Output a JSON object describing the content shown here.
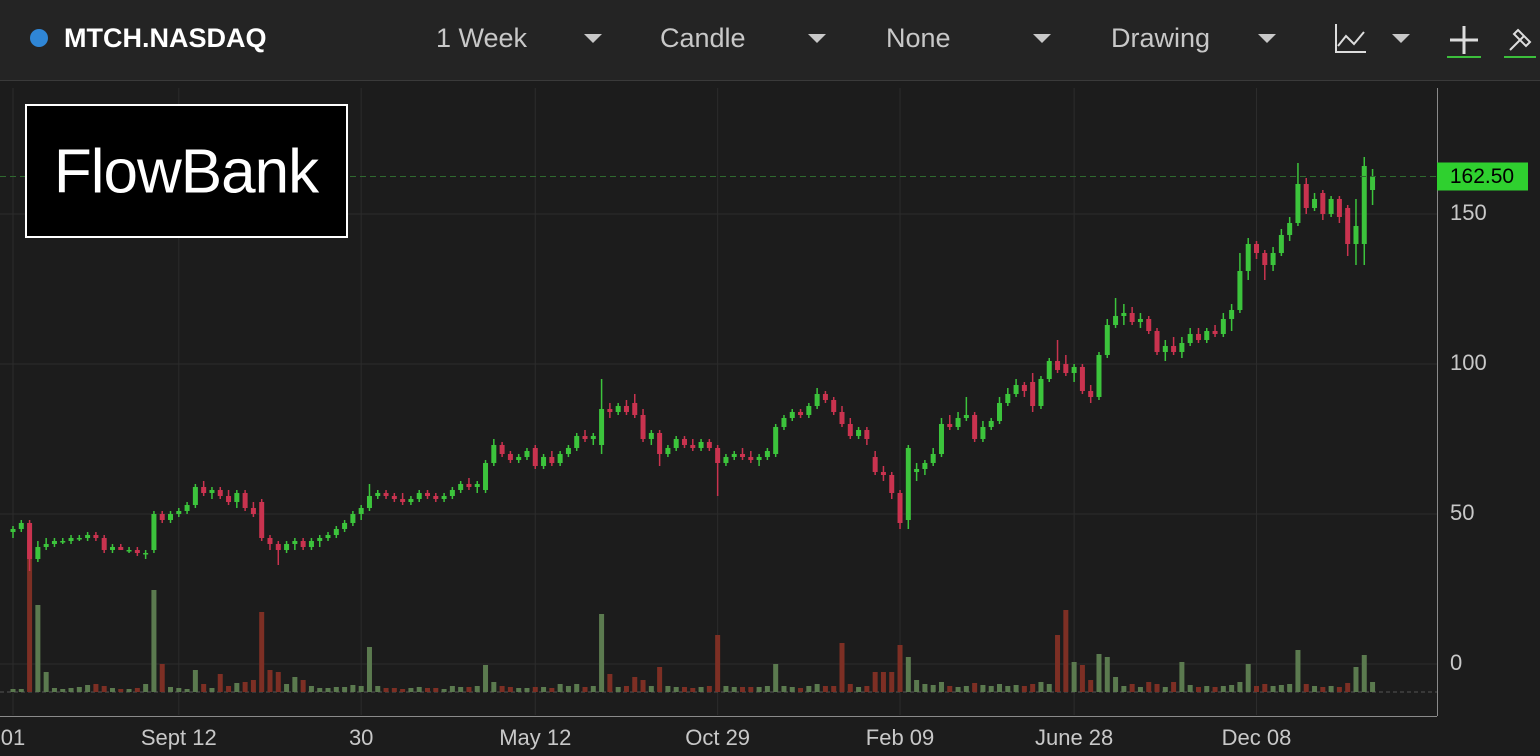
{
  "toolbar": {
    "symbol": "MTCH.NASDAQ",
    "interval": "1 Week",
    "chart_style": "Candle",
    "study": "None",
    "drawing": "Drawing"
  },
  "logo": "FlowBank",
  "chart_data": {
    "type": "candlestick",
    "grid": true,
    "up_color": "#3cc43c",
    "down_color": "#c9334f",
    "volume_up_color": "#5b7a4f",
    "volume_down_color": "#7d2f24",
    "ylim": [
      -17,
      193
    ],
    "yticks": [
      0,
      50,
      100,
      150
    ],
    "last_price": {
      "value": 162.5,
      "label": "162.50"
    },
    "categories": [
      "01",
      null,
      null,
      null,
      null,
      null,
      null,
      null,
      null,
      null,
      null,
      null,
      null,
      null,
      null,
      null,
      null,
      null,
      null,
      null,
      "Sept 12",
      null,
      null,
      null,
      null,
      null,
      null,
      null,
      null,
      null,
      null,
      null,
      null,
      null,
      null,
      null,
      null,
      null,
      null,
      null,
      null,
      null,
      "30",
      null,
      null,
      null,
      null,
      null,
      null,
      null,
      null,
      null,
      null,
      null,
      null,
      null,
      null,
      null,
      null,
      null,
      null,
      null,
      null,
      "May 12",
      null,
      null,
      null,
      null,
      null,
      null,
      null,
      null,
      null,
      null,
      null,
      null,
      null,
      null,
      null,
      null,
      null,
      null,
      null,
      null,
      null,
      "Oct 29",
      null,
      null,
      null,
      null,
      null,
      null,
      null,
      null,
      null,
      null,
      null,
      null,
      null,
      null,
      null,
      null,
      null,
      null,
      null,
      null,
      null,
      "Feb 09",
      null,
      null,
      null,
      null,
      null,
      null,
      null,
      null,
      null,
      null,
      null,
      null,
      null,
      null,
      null,
      null,
      null,
      null,
      null,
      null,
      "June 28",
      null,
      null,
      null,
      null,
      null,
      null,
      null,
      null,
      null,
      null,
      null,
      null,
      null,
      null,
      null,
      null,
      null,
      null,
      null,
      null,
      null,
      "Dec 08",
      null,
      null,
      null,
      null,
      null,
      null,
      null,
      null,
      null,
      null,
      null,
      null,
      null,
      null
    ],
    "candles": [
      [
        44,
        46,
        42,
        45,
        3
      ],
      [
        45,
        48,
        44,
        47,
        3
      ],
      [
        47,
        48,
        31,
        35,
        152
      ],
      [
        35,
        41,
        34,
        39,
        87
      ],
      [
        39,
        42,
        38,
        40,
        20
      ],
      [
        40,
        42,
        39,
        41,
        4
      ],
      [
        41,
        42,
        40,
        41,
        3
      ],
      [
        41,
        43,
        40,
        42,
        4
      ],
      [
        42,
        43,
        41,
        42,
        5
      ],
      [
        42,
        44,
        41,
        43,
        7
      ],
      [
        43,
        44,
        41,
        42,
        8
      ],
      [
        42,
        43,
        37,
        38,
        6
      ],
      [
        38,
        40,
        37,
        39,
        4
      ],
      [
        39,
        40,
        38,
        38,
        3
      ],
      [
        38,
        39,
        37,
        38,
        3
      ],
      [
        38,
        39,
        36,
        37,
        4
      ],
      [
        37,
        38,
        35,
        37,
        8
      ],
      [
        38,
        51,
        37,
        50,
        102
      ],
      [
        50,
        51,
        47,
        48,
        28
      ],
      [
        48,
        51,
        47,
        50,
        5
      ],
      [
        50,
        52,
        49,
        51,
        4
      ],
      [
        51,
        54,
        50,
        53,
        3
      ],
      [
        53,
        60,
        52,
        59,
        22
      ],
      [
        59,
        61,
        56,
        57,
        8
      ],
      [
        57,
        59,
        55,
        58,
        4
      ],
      [
        58,
        59,
        55,
        56,
        18
      ],
      [
        56,
        58,
        53,
        54,
        6
      ],
      [
        54,
        58,
        52,
        57,
        9
      ],
      [
        57,
        58,
        51,
        52,
        10
      ],
      [
        52,
        54,
        49,
        50,
        12
      ],
      [
        54,
        55,
        41,
        42,
        80
      ],
      [
        42,
        43,
        38,
        40,
        22
      ],
      [
        40,
        41,
        33,
        38,
        20
      ],
      [
        38,
        41,
        37,
        40,
        8
      ],
      [
        40,
        42,
        38,
        41,
        15
      ],
      [
        41,
        42,
        38,
        39,
        12
      ],
      [
        39,
        42,
        38,
        41,
        6
      ],
      [
        41,
        43,
        39,
        42,
        4
      ],
      [
        42,
        44,
        41,
        43,
        4
      ],
      [
        43,
        46,
        42,
        45,
        5
      ],
      [
        45,
        48,
        44,
        47,
        5
      ],
      [
        47,
        51,
        46,
        50,
        7
      ],
      [
        50,
        53,
        48,
        52,
        6
      ],
      [
        52,
        60,
        51,
        56,
        45
      ],
      [
        56,
        58,
        55,
        57,
        6
      ],
      [
        57,
        58,
        55,
        56,
        4
      ],
      [
        56,
        57,
        54,
        55,
        4
      ],
      [
        55,
        57,
        53,
        54,
        3
      ],
      [
        54,
        56,
        53,
        55,
        4
      ],
      [
        55,
        58,
        54,
        57,
        5
      ],
      [
        57,
        58,
        55,
        56,
        4
      ],
      [
        56,
        57,
        54,
        55,
        4
      ],
      [
        55,
        57,
        54,
        56,
        3
      ],
      [
        56,
        59,
        55,
        58,
        6
      ],
      [
        58,
        61,
        57,
        60,
        5
      ],
      [
        60,
        62,
        58,
        59,
        5
      ],
      [
        59,
        61,
        57,
        60,
        6
      ],
      [
        58,
        68,
        57,
        67,
        27
      ],
      [
        67,
        75,
        66,
        73,
        10
      ],
      [
        73,
        74,
        69,
        70,
        6
      ],
      [
        70,
        71,
        67,
        68,
        5
      ],
      [
        68,
        70,
        67,
        69,
        4
      ],
      [
        69,
        72,
        68,
        71,
        4
      ],
      [
        72,
        73,
        65,
        66,
        5
      ],
      [
        66,
        70,
        65,
        69,
        5
      ],
      [
        69,
        71,
        66,
        67,
        4
      ],
      [
        67,
        71,
        66,
        70,
        8
      ],
      [
        70,
        73,
        69,
        72,
        6
      ],
      [
        72,
        77,
        71,
        76,
        8
      ],
      [
        76,
        78,
        74,
        75,
        5
      ],
      [
        75,
        77,
        73,
        76,
        6
      ],
      [
        73,
        95,
        70,
        85,
        78
      ],
      [
        85,
        87,
        82,
        84,
        18
      ],
      [
        84,
        87,
        83,
        86,
        5
      ],
      [
        86,
        88,
        83,
        84,
        6
      ],
      [
        87,
        90,
        82,
        83,
        15
      ],
      [
        83,
        85,
        74,
        75,
        12
      ],
      [
        75,
        78,
        73,
        77,
        6
      ],
      [
        77,
        78,
        66,
        70,
        25
      ],
      [
        70,
        73,
        69,
        72,
        6
      ],
      [
        72,
        76,
        71,
        75,
        5
      ],
      [
        75,
        76,
        72,
        73,
        5
      ],
      [
        73,
        75,
        71,
        72,
        4
      ],
      [
        72,
        75,
        71,
        74,
        5
      ],
      [
        74,
        75,
        71,
        72,
        6
      ],
      [
        72,
        73,
        56,
        67,
        57
      ],
      [
        67,
        70,
        66,
        69,
        6
      ],
      [
        69,
        71,
        68,
        70,
        5
      ],
      [
        70,
        72,
        68,
        69,
        5
      ],
      [
        69,
        71,
        67,
        68,
        5
      ],
      [
        68,
        70,
        66,
        69,
        5
      ],
      [
        69,
        72,
        68,
        71,
        6
      ],
      [
        70,
        80,
        69,
        79,
        28
      ],
      [
        79,
        83,
        78,
        82,
        6
      ],
      [
        82,
        85,
        81,
        84,
        5
      ],
      [
        84,
        85,
        82,
        83,
        4
      ],
      [
        83,
        87,
        82,
        86,
        6
      ],
      [
        86,
        92,
        85,
        90,
        8
      ],
      [
        90,
        91,
        87,
        88,
        6
      ],
      [
        88,
        89,
        83,
        84,
        6
      ],
      [
        84,
        86,
        79,
        80,
        49
      ],
      [
        80,
        82,
        75,
        76,
        8
      ],
      [
        76,
        79,
        75,
        78,
        5
      ],
      [
        78,
        79,
        73,
        75,
        6
      ],
      [
        69,
        71,
        63,
        64,
        20
      ],
      [
        64,
        66,
        61,
        63,
        20
      ],
      [
        63,
        64,
        55,
        57,
        20
      ],
      [
        57,
        58,
        45,
        47,
        47
      ],
      [
        48,
        73,
        45,
        72,
        35
      ],
      [
        64,
        67,
        61,
        65,
        12
      ],
      [
        65,
        68,
        63,
        67,
        8
      ],
      [
        67,
        72,
        66,
        70,
        7
      ],
      [
        70,
        82,
        69,
        80,
        10
      ],
      [
        80,
        83,
        78,
        79,
        6
      ],
      [
        79,
        84,
        78,
        82,
        5
      ],
      [
        82,
        89,
        81,
        83,
        6
      ],
      [
        83,
        84,
        74,
        75,
        9
      ],
      [
        75,
        81,
        74,
        79,
        7
      ],
      [
        79,
        82,
        78,
        81,
        6
      ],
      [
        81,
        89,
        80,
        87,
        8
      ],
      [
        87,
        92,
        86,
        90,
        6
      ],
      [
        90,
        95,
        89,
        93,
        7
      ],
      [
        93,
        94,
        89,
        91,
        6
      ],
      [
        94,
        97,
        84,
        86,
        8
      ],
      [
        86,
        96,
        85,
        95,
        10
      ],
      [
        95,
        102,
        94,
        101,
        8
      ],
      [
        101,
        108,
        97,
        98,
        57
      ],
      [
        100,
        103,
        96,
        97,
        82
      ],
      [
        97,
        100,
        94,
        99,
        30
      ],
      [
        99,
        100,
        90,
        91,
        27
      ],
      [
        91,
        93,
        87,
        89,
        12
      ],
      [
        89,
        104,
        88,
        103,
        38
      ],
      [
        103,
        115,
        102,
        113,
        35
      ],
      [
        113,
        122,
        112,
        116,
        15
      ],
      [
        116,
        120,
        113,
        117,
        6
      ],
      [
        117,
        119,
        113,
        114,
        8
      ],
      [
        114,
        117,
        112,
        115,
        5
      ],
      [
        115,
        116,
        110,
        111,
        10
      ],
      [
        111,
        112,
        103,
        104,
        8
      ],
      [
        104,
        108,
        101,
        106,
        5
      ],
      [
        106,
        109,
        103,
        104,
        10
      ],
      [
        104,
        109,
        102,
        107,
        30
      ],
      [
        107,
        112,
        106,
        110,
        7
      ],
      [
        110,
        112,
        107,
        108,
        5
      ],
      [
        108,
        112,
        107,
        111,
        6
      ],
      [
        111,
        113,
        109,
        110,
        5
      ],
      [
        110,
        117,
        109,
        115,
        6
      ],
      [
        115,
        120,
        111,
        118,
        7
      ],
      [
        118,
        137,
        117,
        131,
        10
      ],
      [
        131,
        142,
        128,
        140,
        28
      ],
      [
        140,
        141,
        135,
        137,
        6
      ],
      [
        137,
        138,
        128,
        133,
        8
      ],
      [
        133,
        139,
        131,
        137,
        6
      ],
      [
        137,
        145,
        136,
        143,
        7
      ],
      [
        143,
        149,
        141,
        147,
        8
      ],
      [
        147,
        167,
        146,
        160,
        42
      ],
      [
        160,
        162,
        150,
        152,
        8
      ],
      [
        152,
        157,
        151,
        155,
        6
      ],
      [
        157,
        158,
        148,
        150,
        5
      ],
      [
        150,
        156,
        149,
        155,
        6
      ],
      [
        155,
        156,
        147,
        149,
        5
      ],
      [
        152,
        153,
        136,
        140,
        9
      ],
      [
        140,
        155,
        133,
        146,
        25
      ],
      [
        140,
        169,
        133,
        166,
        37
      ],
      [
        158,
        165,
        153,
        162.5,
        10
      ]
    ]
  }
}
